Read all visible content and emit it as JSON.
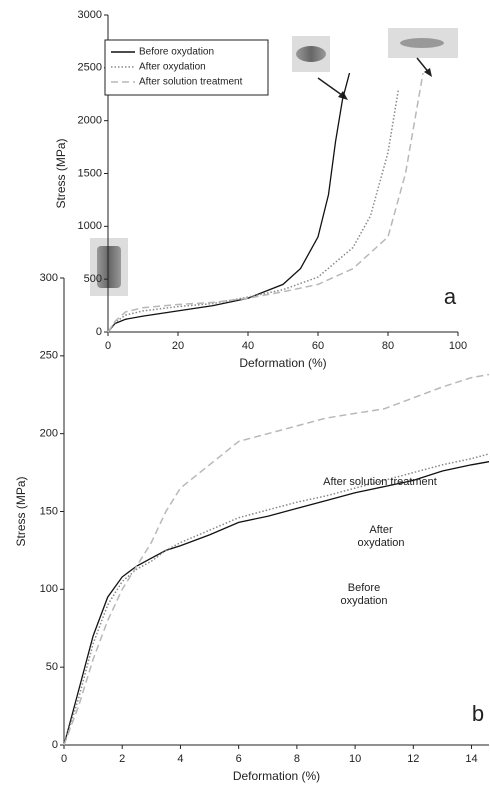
{
  "chart_data": [
    {
      "type": "line",
      "xlabel": "Deformation (%)",
      "ylabel": "Stress (MPa)",
      "annotation": "a",
      "xlim": [
        0,
        100
      ],
      "xticks": [
        0,
        20,
        40,
        60,
        80,
        100
      ],
      "ylim": [
        0,
        3000
      ],
      "yticks": [
        0,
        500,
        1000,
        1500,
        2000,
        2500,
        3000
      ],
      "legend": "upper left",
      "series": [
        {
          "name": "Before oxydation",
          "color": "#111111",
          "style": "solid",
          "x": [
            0,
            2,
            5,
            10,
            20,
            30,
            40,
            50,
            55,
            60,
            63,
            65,
            67,
            69
          ],
          "values": [
            0,
            80,
            120,
            150,
            200,
            250,
            320,
            450,
            600,
            900,
            1300,
            1800,
            2200,
            2450
          ]
        },
        {
          "name": "After oxydation",
          "color": "#888888",
          "style": "dotted",
          "x": [
            0,
            2,
            5,
            10,
            20,
            30,
            40,
            50,
            60,
            70,
            75,
            80,
            83
          ],
          "values": [
            0,
            90,
            160,
            200,
            240,
            270,
            330,
            400,
            520,
            800,
            1100,
            1700,
            2300
          ]
        },
        {
          "name": "After solution treatment",
          "color": "#b8b8b8",
          "style": "dashed",
          "x": [
            0,
            2,
            5,
            10,
            20,
            30,
            40,
            50,
            60,
            70,
            80,
            85,
            90
          ],
          "values": [
            0,
            100,
            190,
            230,
            260,
            280,
            320,
            380,
            450,
            600,
            900,
            1500,
            2450
          ]
        }
      ]
    },
    {
      "type": "line",
      "xlabel": "Deformation (%)",
      "ylabel": "Stress (MPa)",
      "annotation": "b",
      "xlim": [
        0,
        14.6
      ],
      "xticks": [
        0,
        2,
        4,
        6,
        8,
        10,
        12,
        14
      ],
      "ylim": [
        0,
        300
      ],
      "yticks": [
        0,
        50,
        100,
        150,
        200,
        250,
        300
      ],
      "legend": "inline",
      "series": [
        {
          "name": "Before oxydation",
          "color": "#111111",
          "style": "solid",
          "x": [
            0,
            0.5,
            1,
            1.5,
            2,
            2.5,
            3,
            3.5,
            4,
            5,
            6,
            7,
            8,
            9,
            10,
            11,
            12,
            13,
            14,
            14.6
          ],
          "values": [
            0,
            35,
            70,
            95,
            108,
            115,
            120,
            125,
            128,
            135,
            143,
            147,
            152,
            157,
            162,
            166,
            170,
            176,
            180,
            182
          ]
        },
        {
          "name": "After oxydation",
          "color": "#888888",
          "style": "dotted",
          "x": [
            0,
            0.5,
            1,
            1.5,
            2,
            2.5,
            3,
            3.5,
            4,
            5,
            6,
            7,
            8,
            9,
            10,
            11,
            12,
            13,
            14,
            14.6
          ],
          "values": [
            0,
            30,
            65,
            90,
            105,
            113,
            118,
            125,
            130,
            138,
            146,
            151,
            156,
            160,
            165,
            170,
            175,
            180,
            184,
            187
          ]
        },
        {
          "name": "After solution treatment",
          "color": "#b8b8b8",
          "style": "dashed",
          "x": [
            0,
            0.5,
            1,
            1.5,
            2,
            2.5,
            3,
            3.5,
            4,
            5,
            6,
            7,
            8,
            9,
            10,
            11,
            12,
            13,
            14,
            14.6
          ],
          "values": [
            0,
            25,
            55,
            80,
            100,
            115,
            130,
            150,
            165,
            180,
            195,
            200,
            205,
            210,
            213,
            216,
            223,
            230,
            236,
            238
          ]
        }
      ]
    }
  ]
}
